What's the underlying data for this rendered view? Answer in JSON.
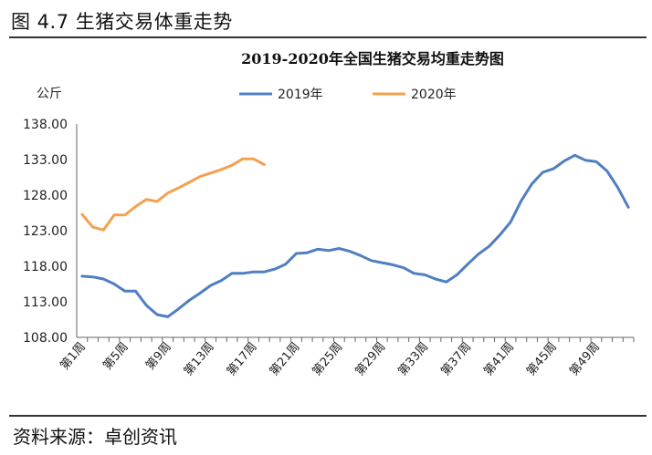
{
  "figure": {
    "title": "图 4.7 生猪交易体重走势",
    "source": "资料来源：卓创资讯"
  },
  "chart_data": {
    "type": "line",
    "title": "2019-2020年全国生猪交易均重走势图",
    "ylabel": "公斤",
    "xlabel": "",
    "ylim": [
      108,
      138
    ],
    "yticks": [
      "108.00",
      "113.00",
      "118.00",
      "123.00",
      "128.00",
      "133.00",
      "138.00"
    ],
    "legend_position": "top",
    "grid": false,
    "x_tick_labels": [
      "第1周",
      "第5周",
      "第9周",
      "第13周",
      "第17周",
      "第21周",
      "第25周",
      "第29周",
      "第33周",
      "第37周",
      "第41周",
      "第45周",
      "第49周"
    ],
    "series": [
      {
        "name": "2019年",
        "color": "#4f7fc2",
        "x": [
          1,
          2,
          3,
          4,
          5,
          6,
          7,
          8,
          9,
          10,
          11,
          12,
          13,
          14,
          15,
          16,
          17,
          18,
          19,
          20,
          21,
          22,
          23,
          24,
          25,
          26,
          27,
          28,
          29,
          30,
          31,
          32,
          33,
          34,
          35,
          36,
          37,
          38,
          39,
          40,
          41,
          42,
          43,
          44,
          45,
          46,
          47,
          48,
          49,
          50,
          51,
          52
        ],
        "values": [
          116.6,
          116.5,
          116.2,
          115.5,
          114.5,
          114.5,
          112.5,
          111.2,
          110.9,
          112.0,
          113.2,
          114.2,
          115.3,
          116.0,
          117.0,
          117.0,
          117.2,
          117.2,
          117.6,
          118.3,
          119.8,
          119.9,
          120.4,
          120.2,
          120.5,
          120.1,
          119.5,
          118.8,
          118.5,
          118.2,
          117.8,
          117.0,
          116.8,
          116.2,
          115.8,
          116.8,
          118.3,
          119.7,
          120.8,
          122.4,
          124.2,
          127.2,
          129.6,
          131.2,
          131.7,
          132.8,
          133.6,
          132.9,
          132.7,
          131.4,
          129.1,
          126.3
        ]
      },
      {
        "name": "2020年",
        "color": "#f5a04e",
        "x": [
          1,
          2,
          3,
          4,
          5,
          6,
          7,
          8,
          9,
          10,
          11,
          12,
          13,
          14,
          15,
          16,
          17,
          18
        ],
        "values": [
          125.3,
          123.5,
          123.1,
          125.2,
          125.2,
          126.4,
          127.4,
          127.1,
          128.3,
          129.0,
          129.8,
          130.6,
          131.1,
          131.6,
          132.2,
          133.1,
          133.1,
          132.3
        ]
      }
    ]
  }
}
